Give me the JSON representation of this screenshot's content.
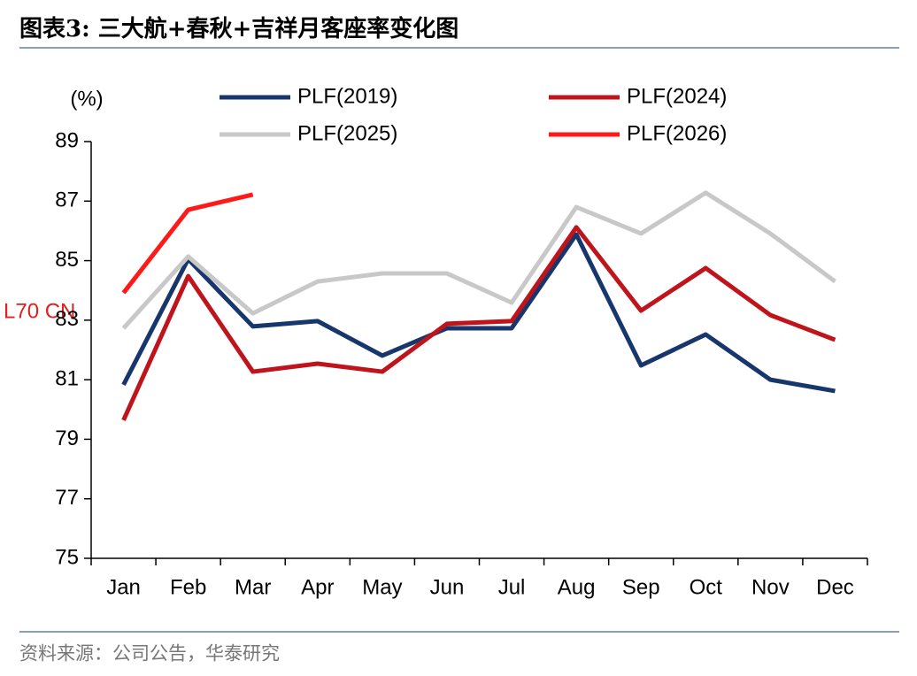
{
  "chart_data": {
    "type": "line",
    "title": "图表3:  三大航+春秋+吉祥月客座率变化图",
    "source": "资料来源：公司公告，华泰研究",
    "y_label": "(%)",
    "annotation": "L70 CN",
    "categories": [
      "Jan",
      "Feb",
      "Mar",
      "Apr",
      "May",
      "Jun",
      "Jul",
      "Aug",
      "Sep",
      "Oct",
      "Nov",
      "Dec"
    ],
    "series": [
      {
        "name": "PLF(2019)",
        "color": "#17366b",
        "values": [
          80.83,
          85.05,
          82.79,
          82.97,
          81.81,
          82.73,
          82.73,
          85.88,
          81.48,
          82.52,
          81.0,
          80.62
        ]
      },
      {
        "name": "PLF(2024)",
        "color": "#c0141c",
        "values": [
          79.64,
          84.48,
          81.27,
          81.54,
          81.27,
          82.88,
          82.97,
          86.12,
          83.32,
          84.75,
          83.17,
          82.34
        ]
      },
      {
        "name": "PLF(2025)",
        "color": "#c8c8c8",
        "values": [
          82.73,
          85.14,
          83.23,
          84.3,
          84.57,
          84.57,
          83.59,
          86.8,
          85.91,
          87.28,
          85.91,
          84.3
        ]
      },
      {
        "name": "PLF(2026)",
        "color": "#ff1a1a",
        "values": [
          83.92,
          86.71,
          87.22,
          null,
          null,
          null,
          null,
          null,
          null,
          null,
          null,
          null
        ]
      }
    ],
    "ylim": [
      75,
      89
    ],
    "yticks": [
      75,
      77,
      79,
      81,
      83,
      85,
      87,
      89
    ],
    "grid": false
  }
}
